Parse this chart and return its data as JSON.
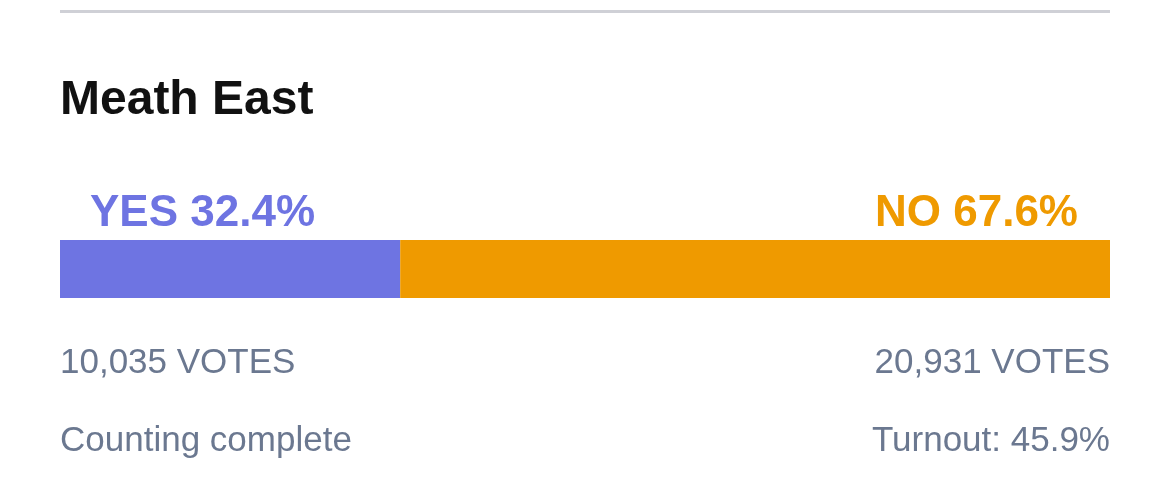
{
  "chart_data": {
    "type": "bar",
    "orientation": "horizontal",
    "stacked": true,
    "title": "Meath East",
    "categories": [
      null
    ],
    "tick_labels": false,
    "series": [
      {
        "name": "YES",
        "color": "#6e74e2",
        "values": [
          32.4
        ],
        "value_labels": [
          "32.4%"
        ]
      },
      {
        "name": "NO",
        "color": "#ef9a00",
        "values": [
          67.6
        ],
        "value_labels": [
          "67.6%"
        ]
      }
    ],
    "annotations": [
      "10,035 VOTES",
      "20,931 VOTES",
      "Counting complete",
      "Turnout: 45.9%"
    ]
  }
}
